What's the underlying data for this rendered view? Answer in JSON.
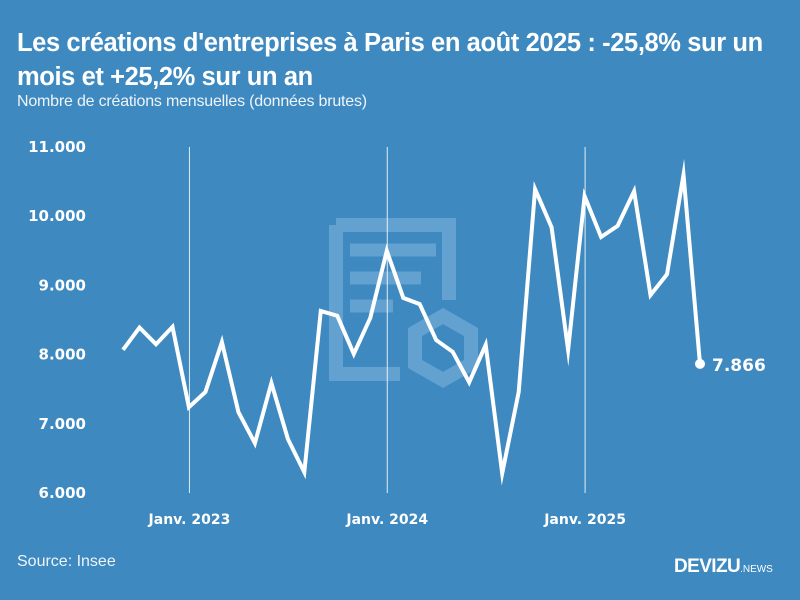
{
  "header": {
    "title": "Les créations d'entreprises à Paris en août 2025 : -25,8% sur un mois et +25,2% sur un an",
    "subtitle": "Nombre de créations mensuelles (données brutes)"
  },
  "footer": {
    "source": "Source: Insee",
    "brand_name": "DEVIZU",
    "brand_suffix": ".NEWS"
  },
  "colors": {
    "background": "#3d89c0",
    "line": "#ffffff",
    "watermark": "#6aa6d3"
  },
  "chart_data": {
    "type": "line",
    "title": "Les créations d'entreprises à Paris en août 2025 : -25,8% sur un mois et +25,2% sur un an",
    "subtitle": "Nombre de créations mensuelles (données brutes)",
    "xlabel": "",
    "ylabel": "",
    "ylim": [
      6000,
      11000
    ],
    "yticks": [
      6000,
      7000,
      8000,
      9000,
      10000,
      11000
    ],
    "ytick_labels": [
      "6.000",
      "7.000",
      "8.000",
      "9.000",
      "10.000",
      "11.000"
    ],
    "xtick_labels": [
      "Janv. 2023",
      "Janv. 2024",
      "Janv. 2025"
    ],
    "xtick_indices": [
      4,
      16,
      28
    ],
    "grid": "vertical lines at January of each year",
    "legend": "none",
    "x": [
      "2022-09",
      "2022-10",
      "2022-11",
      "2022-12",
      "2023-01",
      "2023-02",
      "2023-03",
      "2023-04",
      "2023-05",
      "2023-06",
      "2023-07",
      "2023-08",
      "2023-09",
      "2023-10",
      "2023-11",
      "2023-12",
      "2024-01",
      "2024-02",
      "2024-03",
      "2024-04",
      "2024-05",
      "2024-06",
      "2024-07",
      "2024-08",
      "2024-09",
      "2024-10",
      "2024-11",
      "2024-12",
      "2025-01",
      "2025-02",
      "2025-03",
      "2025-04",
      "2025-05",
      "2025-06",
      "2025-07",
      "2025-08"
    ],
    "series": [
      {
        "name": "Créations d'entreprises à Paris",
        "values": [
          8070,
          8390,
          8150,
          8400,
          7240,
          7460,
          8180,
          7170,
          6720,
          7590,
          6780,
          6300,
          8630,
          8560,
          8010,
          8530,
          9500,
          8820,
          8730,
          8210,
          8040,
          7600,
          8140,
          6283,
          7460,
          10390,
          9840,
          8070,
          10290,
          9700,
          9860,
          10360,
          8860,
          9160,
          10600,
          7866
        ]
      }
    ],
    "annotations": [
      {
        "point_index": 35,
        "label": "7.866"
      }
    ]
  }
}
